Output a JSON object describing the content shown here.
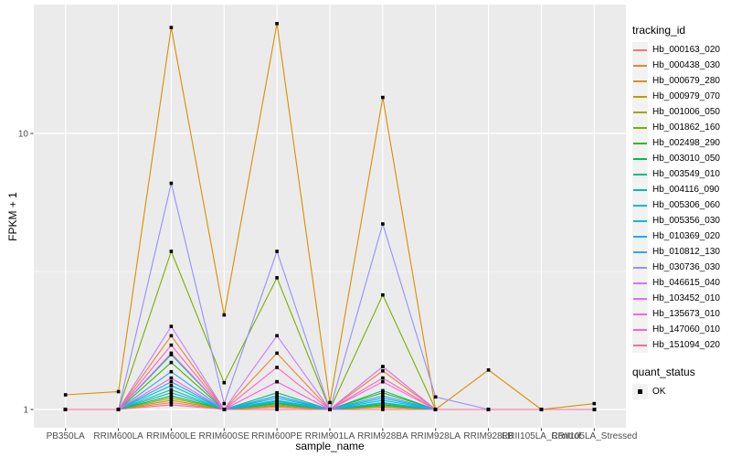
{
  "chart_data": {
    "type": "line",
    "xlabel": "sample_name",
    "ylabel": "FPKM + 1",
    "y_scale": "log10",
    "y_major_ticks": [
      1,
      10
    ],
    "y_minor_gridlines": [
      3.162
    ],
    "ylim": [
      0.86,
      29.3
    ],
    "panel_background": "#EBEBEB",
    "gridline_color": "#FFFFFF",
    "marker": {
      "shape": "square",
      "color": "#000000"
    },
    "legend": {
      "position": "right",
      "tracking_title": "tracking_id",
      "quant_title": "quant_status",
      "quant_label": "OK"
    },
    "categories": [
      "PB350LA",
      "RRIM600LA",
      "RRIM600LE",
      "RRIM600SE",
      "RRIM600PE",
      "RRIM901LA",
      "RRIM928BA",
      "RRIM928LA",
      "RRIM928LB",
      "RRII105LA_Control",
      "RRII105LA_Stressed"
    ],
    "series": [
      {
        "name": "Hb_000163_020",
        "color": "#F8766D",
        "values": [
          1,
          1,
          1.06,
          1,
          1.02,
          1,
          1.02,
          1,
          1,
          1,
          1
        ]
      },
      {
        "name": "Hb_000438_030",
        "color": "#EA8331",
        "values": [
          1,
          1,
          1.85,
          1,
          1.6,
          1,
          1.38,
          1,
          1,
          1,
          1
        ]
      },
      {
        "name": "Hb_000679_280",
        "color": "#D89000",
        "values": [
          1.13,
          1.16,
          24.2,
          2.2,
          25.0,
          1.06,
          13.5,
          1,
          1.39,
          1,
          1.05
        ]
      },
      {
        "name": "Hb_000979_070",
        "color": "#C09B00",
        "values": [
          1,
          1,
          1.08,
          1,
          1.03,
          1,
          1.02,
          1,
          1,
          1,
          1
        ]
      },
      {
        "name": "Hb_001006_050",
        "color": "#A3A500",
        "values": [
          1,
          1,
          1.1,
          1,
          1.04,
          1,
          1.03,
          1,
          1,
          1,
          1
        ]
      },
      {
        "name": "Hb_001862_160",
        "color": "#7CAE00",
        "values": [
          1,
          1,
          3.74,
          1.25,
          3.0,
          1,
          2.6,
          1,
          1,
          1,
          1
        ]
      },
      {
        "name": "Hb_002498_290",
        "color": "#39B600",
        "values": [
          1,
          1,
          1.48,
          1,
          1.12,
          1,
          1.15,
          1,
          1,
          1,
          1
        ]
      },
      {
        "name": "Hb_003010_050",
        "color": "#00BB4E",
        "values": [
          1,
          1,
          1.12,
          1,
          1.05,
          1,
          1.04,
          1,
          1,
          1,
          1
        ]
      },
      {
        "name": "Hb_003549_010",
        "color": "#00BF7D",
        "values": [
          1,
          1,
          1.58,
          1,
          1.15,
          1,
          1.17,
          1,
          1,
          1,
          1
        ]
      },
      {
        "name": "Hb_004116_090",
        "color": "#00C1A3",
        "values": [
          1,
          1,
          1.15,
          1,
          1.06,
          1,
          1.05,
          1,
          1,
          1,
          1
        ]
      },
      {
        "name": "Hb_005306_060",
        "color": "#00BFC4",
        "values": [
          1,
          1,
          1.18,
          1,
          1.07,
          1,
          1.06,
          1,
          1,
          1,
          1
        ]
      },
      {
        "name": "Hb_005356_030",
        "color": "#00BAE0",
        "values": [
          1,
          1,
          1.22,
          1,
          1.08,
          1,
          1.08,
          1,
          1,
          1,
          1
        ]
      },
      {
        "name": "Hb_010369_020",
        "color": "#00B0F6",
        "values": [
          1,
          1,
          1.26,
          1,
          1.1,
          1,
          1.1,
          1,
          1,
          1,
          1
        ]
      },
      {
        "name": "Hb_010812_130",
        "color": "#35A2FF",
        "values": [
          1,
          1,
          1.37,
          1,
          1.12,
          1,
          1.12,
          1,
          1,
          1,
          1
        ]
      },
      {
        "name": "Hb_030736_030",
        "color": "#9590FF",
        "values": [
          1,
          1,
          6.6,
          1.05,
          3.74,
          1,
          4.7,
          1.11,
          1,
          1,
          1
        ]
      },
      {
        "name": "Hb_046615_040",
        "color": "#C77CFF",
        "values": [
          1,
          1,
          2.0,
          1,
          1.85,
          1,
          1.43,
          1,
          1,
          1,
          1
        ]
      },
      {
        "name": "Hb_103452_010",
        "color": "#E76BF3",
        "values": [
          1,
          1,
          1.6,
          1,
          1.26,
          1,
          1.43,
          1,
          1,
          1,
          1
        ]
      },
      {
        "name": "Hb_135673_010",
        "color": "#FA62DB",
        "values": [
          1,
          1,
          1.3,
          1,
          1.26,
          1,
          1.26,
          1,
          1,
          1,
          1
        ]
      },
      {
        "name": "Hb_147060_010",
        "color": "#FF62BC",
        "values": [
          1,
          1,
          1.71,
          1,
          1.42,
          1,
          1.3,
          1,
          1,
          1,
          1
        ]
      },
      {
        "name": "Hb_151094_020",
        "color": "#FF6A98",
        "values": [
          1,
          1,
          1.04,
          1,
          1,
          1,
          1,
          1,
          1,
          1,
          1
        ]
      }
    ]
  }
}
